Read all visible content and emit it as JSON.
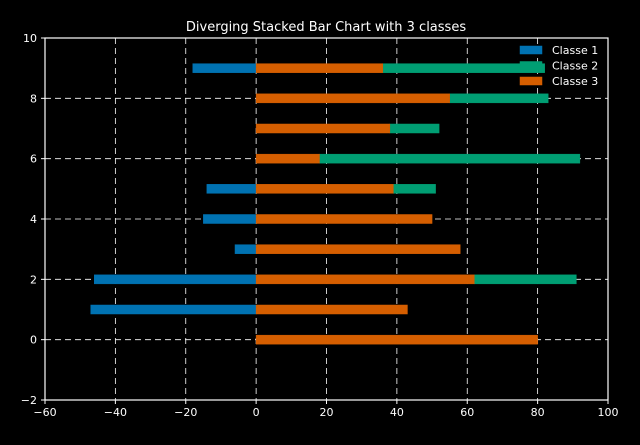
{
  "chart_data": {
    "type": "bar",
    "orientation": "horizontal",
    "stacking": "diverging",
    "title": "Diverging Stacked Bar Chart with 3 classes",
    "xlabel": "",
    "ylabel": "",
    "xlim": [
      -60,
      100
    ],
    "ylim": [
      -2,
      10
    ],
    "xticks": [
      -60,
      -40,
      -20,
      0,
      20,
      40,
      60,
      80,
      100
    ],
    "yticks": [
      -2,
      0,
      2,
      4,
      6,
      8,
      10
    ],
    "grid": true,
    "grid_style": "dashed",
    "legend_position": "top-right",
    "background": "#000000",
    "series": [
      {
        "name": "Classe 1",
        "color": "#0072b2",
        "bars": [
          {
            "y": 1,
            "start": -47,
            "end": 0
          },
          {
            "y": 2,
            "start": -46,
            "end": 0
          },
          {
            "y": 3,
            "start": -6,
            "end": 0
          },
          {
            "y": 4,
            "start": -15,
            "end": 0
          },
          {
            "y": 5,
            "start": -14,
            "end": 0
          },
          {
            "y": 9,
            "start": -18,
            "end": 0
          }
        ]
      },
      {
        "name": "Classe 2",
        "color": "#009e73",
        "bars": [
          {
            "y": 2,
            "start": 62,
            "end": 91
          },
          {
            "y": 5,
            "start": 39,
            "end": 51
          },
          {
            "y": 6,
            "start": 18,
            "end": 92
          },
          {
            "y": 7,
            "start": 38,
            "end": 52
          },
          {
            "y": 8,
            "start": 55,
            "end": 83
          },
          {
            "y": 9,
            "start": 36,
            "end": 82
          }
        ]
      },
      {
        "name": "Classe 3",
        "color": "#d55e00",
        "bars": [
          {
            "y": 0,
            "start": 0,
            "end": 80
          },
          {
            "y": 1,
            "start": 0,
            "end": 43
          },
          {
            "y": 2,
            "start": 0,
            "end": 62
          },
          {
            "y": 3,
            "start": 0,
            "end": 58
          },
          {
            "y": 4,
            "start": 0,
            "end": 50
          },
          {
            "y": 5,
            "start": 0,
            "end": 39
          },
          {
            "y": 6,
            "start": 0,
            "end": 18
          },
          {
            "y": 7,
            "start": 0,
            "end": 38
          },
          {
            "y": 8,
            "start": 0,
            "end": 55
          },
          {
            "y": 9,
            "start": 0,
            "end": 36
          }
        ]
      }
    ]
  }
}
